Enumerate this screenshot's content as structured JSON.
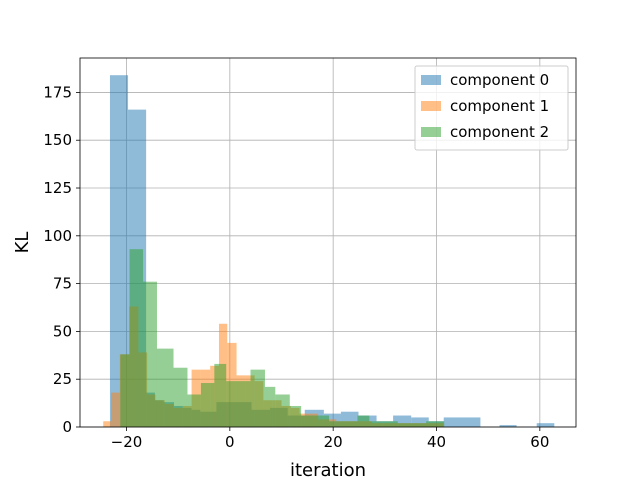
{
  "chart_data": {
    "type": "histogram",
    "title": "",
    "xlabel": "iteration",
    "ylabel": "KL",
    "xlim": [
      -29,
      67
    ],
    "ylim": [
      0,
      193
    ],
    "xticks": [
      -20,
      0,
      20,
      40,
      60
    ],
    "yticks": [
      0,
      25,
      50,
      75,
      100,
      125,
      150,
      175
    ],
    "grid": true,
    "legend_position": "top-right",
    "alpha": 0.5,
    "series": [
      {
        "name": "component 0",
        "color": "#1f77b4",
        "bins": [
          {
            "x0": -23.2,
            "x1": -19.7,
            "count": 184
          },
          {
            "x0": -19.7,
            "x1": -16.2,
            "count": 166
          },
          {
            "x0": -16.2,
            "x1": -14.5,
            "count": 18
          },
          {
            "x0": -14.5,
            "x1": -12.8,
            "count": 14
          },
          {
            "x0": -12.8,
            "x1": -10.8,
            "count": 13
          },
          {
            "x0": -10.8,
            "x1": -9.1,
            "count": 11
          },
          {
            "x0": -9.1,
            "x1": -7.4,
            "count": 10
          },
          {
            "x0": -7.4,
            "x1": -5.7,
            "count": 9
          },
          {
            "x0": -5.7,
            "x1": -2.6,
            "count": 8
          },
          {
            "x0": -2.6,
            "x1": 4.2,
            "count": 13
          },
          {
            "x0": 4.2,
            "x1": 7.8,
            "count": 9
          },
          {
            "x0": 7.8,
            "x1": 11.2,
            "count": 10
          },
          {
            "x0": 11.2,
            "x1": 14.5,
            "count": 6
          },
          {
            "x0": 14.5,
            "x1": 18.2,
            "count": 9
          },
          {
            "x0": 18.2,
            "x1": 21.5,
            "count": 7
          },
          {
            "x0": 21.5,
            "x1": 24.9,
            "count": 8
          },
          {
            "x0": 24.9,
            "x1": 28.4,
            "count": 6
          },
          {
            "x0": 28.4,
            "x1": 31.6,
            "count": 3
          },
          {
            "x0": 31.6,
            "x1": 35.1,
            "count": 6
          },
          {
            "x0": 35.1,
            "x1": 38.5,
            "count": 5
          },
          {
            "x0": 38.5,
            "x1": 41.4,
            "count": 3
          },
          {
            "x0": 41.4,
            "x1": 48.5,
            "count": 5
          },
          {
            "x0": 52.2,
            "x1": 55.5,
            "count": 1
          },
          {
            "x0": 59.4,
            "x1": 62.8,
            "count": 2
          }
        ]
      },
      {
        "name": "component 1",
        "color": "#ff7f0e",
        "bins": [
          {
            "x0": -24.5,
            "x1": -23.0,
            "count": 3
          },
          {
            "x0": -23.0,
            "x1": -21.3,
            "count": 18
          },
          {
            "x0": -21.3,
            "x1": -19.5,
            "count": 38
          },
          {
            "x0": -19.5,
            "x1": -17.7,
            "count": 63
          },
          {
            "x0": -17.7,
            "x1": -16.0,
            "count": 39
          },
          {
            "x0": -16.0,
            "x1": -14.4,
            "count": 17
          },
          {
            "x0": -14.4,
            "x1": -12.6,
            "count": 14
          },
          {
            "x0": -12.6,
            "x1": -10.9,
            "count": 12
          },
          {
            "x0": -10.9,
            "x1": -9.1,
            "count": 10
          },
          {
            "x0": -9.1,
            "x1": -7.4,
            "count": 11
          },
          {
            "x0": -7.4,
            "x1": -5.7,
            "count": 30
          },
          {
            "x0": -5.7,
            "x1": -3.8,
            "count": 30
          },
          {
            "x0": -3.8,
            "x1": -2.1,
            "count": 32
          },
          {
            "x0": -2.1,
            "x1": -0.5,
            "count": 54
          },
          {
            "x0": -0.5,
            "x1": 1.3,
            "count": 44
          },
          {
            "x0": 1.3,
            "x1": 3.0,
            "count": 27
          },
          {
            "x0": 3.0,
            "x1": 4.8,
            "count": 27
          },
          {
            "x0": 4.8,
            "x1": 6.5,
            "count": 24
          },
          {
            "x0": 6.5,
            "x1": 8.3,
            "count": 14
          },
          {
            "x0": 8.3,
            "x1": 10.0,
            "count": 14
          },
          {
            "x0": 10.0,
            "x1": 11.8,
            "count": 11
          },
          {
            "x0": 11.8,
            "x1": 13.5,
            "count": 10
          },
          {
            "x0": 13.5,
            "x1": 17.1,
            "count": 7
          },
          {
            "x0": 17.1,
            "x1": 20.6,
            "count": 4
          },
          {
            "x0": 20.6,
            "x1": 27.5,
            "count": 3
          },
          {
            "x0": 27.5,
            "x1": 41.4,
            "count": 2
          }
        ]
      },
      {
        "name": "component 2",
        "color": "#2ca02c",
        "bins": [
          {
            "x0": -21.2,
            "x1": -19.4,
            "count": 38
          },
          {
            "x0": -19.4,
            "x1": -16.8,
            "count": 93
          },
          {
            "x0": -16.8,
            "x1": -14.1,
            "count": 76
          },
          {
            "x0": -14.1,
            "x1": -10.9,
            "count": 41
          },
          {
            "x0": -10.9,
            "x1": -8.2,
            "count": 31
          },
          {
            "x0": -8.2,
            "x1": -5.6,
            "count": 17
          },
          {
            "x0": -5.6,
            "x1": -3.0,
            "count": 23
          },
          {
            "x0": -3.0,
            "x1": -0.7,
            "count": 33
          },
          {
            "x0": -0.7,
            "x1": 4.0,
            "count": 24
          },
          {
            "x0": 4.0,
            "x1": 6.8,
            "count": 30
          },
          {
            "x0": 6.8,
            "x1": 8.8,
            "count": 21
          },
          {
            "x0": 8.8,
            "x1": 11.6,
            "count": 17
          },
          {
            "x0": 11.6,
            "x1": 13.8,
            "count": 11
          },
          {
            "x0": 13.8,
            "x1": 16.5,
            "count": 6
          },
          {
            "x0": 16.5,
            "x1": 19.2,
            "count": 6
          },
          {
            "x0": 19.2,
            "x1": 22.0,
            "count": 3
          },
          {
            "x0": 22.0,
            "x1": 24.7,
            "count": 3
          },
          {
            "x0": 24.7,
            "x1": 27.0,
            "count": 6
          },
          {
            "x0": 27.0,
            "x1": 29.5,
            "count": 3
          },
          {
            "x0": 29.5,
            "x1": 32.5,
            "count": 3
          },
          {
            "x0": 32.5,
            "x1": 38.0,
            "count": 2
          },
          {
            "x0": 38.0,
            "x1": 41.5,
            "count": 3
          }
        ]
      }
    ]
  }
}
